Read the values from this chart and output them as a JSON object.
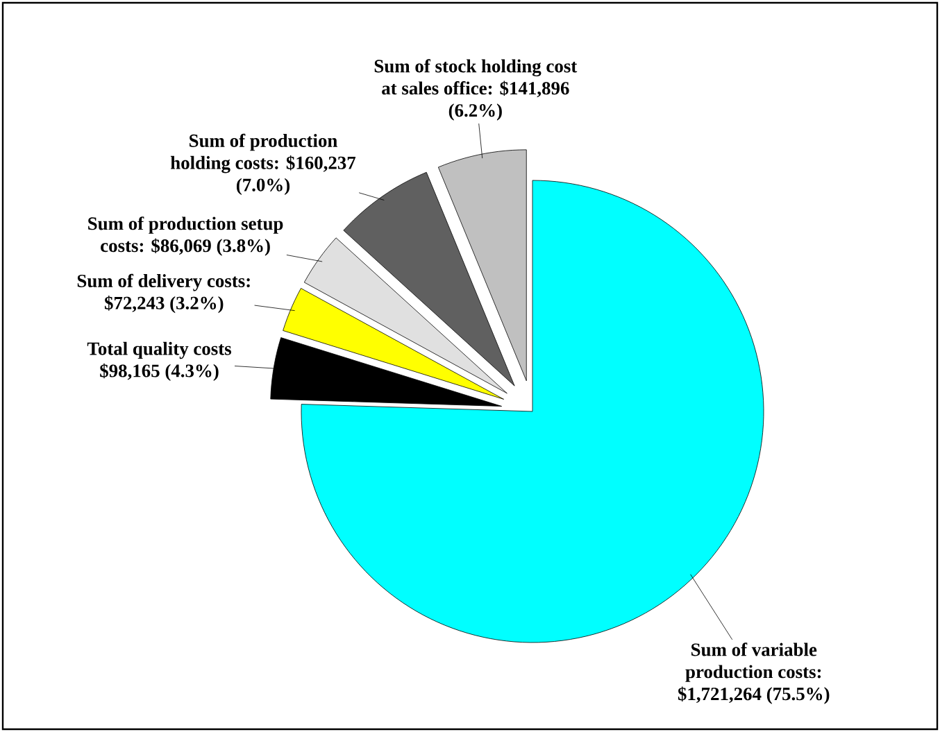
{
  "chart_data": {
    "type": "pie",
    "categories": [
      "Sum of variable production costs: $1,721,264 (75.5%)",
      "Total quality costs $98,165 (4.3%)",
      "Sum of delivery costs: $72,243 (3.2%)",
      "Sum of production setup costs: $86,069 (3.8%)",
      "Sum of production holding costs: $160,237 (7.0%)",
      "Sum of stock holding cost at sales office: $141,896 (6.2%)"
    ],
    "values": [
      1721264,
      98165,
      72243,
      86069,
      160237,
      141896
    ],
    "colors": [
      "#00ffff",
      "#000000",
      "#ffff00",
      "#e0e0e0",
      "#606060",
      "#c0c0c0"
    ]
  }
}
